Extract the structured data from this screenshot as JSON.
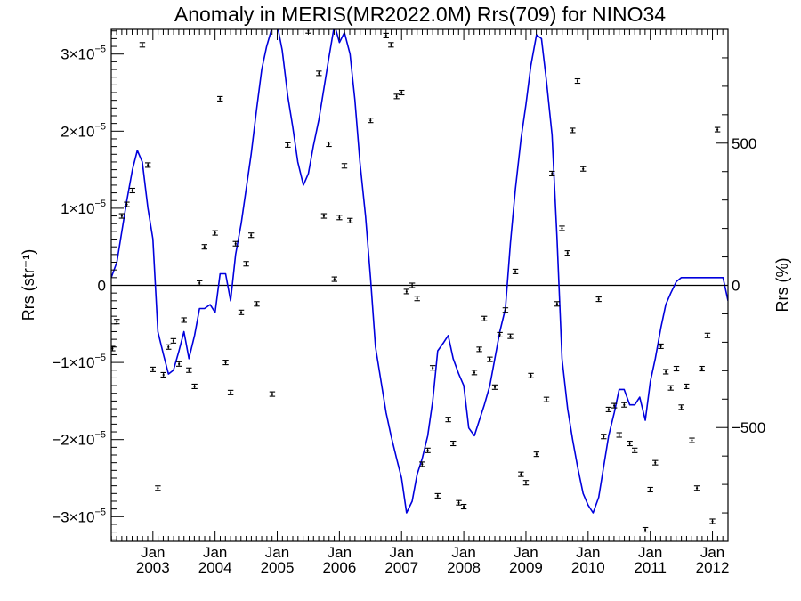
{
  "chart_data": {
    "type": "line",
    "title": "Anomaly in MERIS(MR2022.0M) Rrs(709) for NINO34",
    "ylabel": "Rrs (str⁻¹)",
    "y2label": "Rrs (%)",
    "xlim": [
      2002.33,
      2012.25
    ],
    "ylim": [
      -3.32e-05,
      3.32e-05
    ],
    "y2lim": [
      -900,
      900
    ],
    "x_ticks": [
      {
        "x": 2003.0,
        "month": "Jan",
        "year": "2003"
      },
      {
        "x": 2004.0,
        "month": "Jan",
        "year": "2004"
      },
      {
        "x": 2005.0,
        "month": "Jan",
        "year": "2005"
      },
      {
        "x": 2006.0,
        "month": "Jan",
        "year": "2006"
      },
      {
        "x": 2007.0,
        "month": "Jan",
        "year": "2007"
      },
      {
        "x": 2008.0,
        "month": "Jan",
        "year": "2008"
      },
      {
        "x": 2009.0,
        "month": "Jan",
        "year": "2009"
      },
      {
        "x": 2010.0,
        "month": "Jan",
        "year": "2010"
      },
      {
        "x": 2011.0,
        "month": "Jan",
        "year": "2011"
      },
      {
        "x": 2012.0,
        "month": "Jan",
        "year": "2012"
      }
    ],
    "y_ticks": [
      {
        "value": 3e-05,
        "mantissa": "3",
        "exponent": "−5"
      },
      {
        "value": 2e-05,
        "mantissa": "2",
        "exponent": "−5"
      },
      {
        "value": 1e-05,
        "mantissa": "1",
        "exponent": "−5"
      },
      {
        "value": 0,
        "mantissa": "0",
        "exponent": ""
      },
      {
        "value": -1e-05,
        "mantissa": "−1",
        "exponent": "−5"
      },
      {
        "value": -2e-05,
        "mantissa": "−2",
        "exponent": "−5"
      },
      {
        "value": -3e-05,
        "mantissa": "−3",
        "exponent": "−5"
      }
    ],
    "y2_ticks": [
      {
        "value": 500,
        "label": "500"
      },
      {
        "value": 0,
        "label": "0"
      },
      {
        "value": -500,
        "label": "−500"
      }
    ],
    "colors": {
      "line": "#0000dd",
      "points": "#000000",
      "zero_line": "#000000"
    },
    "line_series": {
      "name": "",
      "x": [
        2002.33,
        2002.42,
        2002.5,
        2002.58,
        2002.67,
        2002.75,
        2002.83,
        2002.92,
        2003.0,
        2003.08,
        2003.17,
        2003.25,
        2003.33,
        2003.42,
        2003.5,
        2003.58,
        2003.67,
        2003.75,
        2003.83,
        2003.92,
        2004.0,
        2004.08,
        2004.17,
        2004.25,
        2004.33,
        2004.42,
        2004.5,
        2004.58,
        2004.67,
        2004.75,
        2004.83,
        2004.92,
        2005.0,
        2005.08,
        2005.17,
        2005.25,
        2005.33,
        2005.42,
        2005.5,
        2005.58,
        2005.67,
        2005.75,
        2005.83,
        2005.92,
        2006.0,
        2006.08,
        2006.17,
        2006.25,
        2006.33,
        2006.42,
        2006.5,
        2006.58,
        2006.67,
        2006.75,
        2006.83,
        2006.92,
        2007.0,
        2007.08,
        2007.17,
        2007.25,
        2007.33,
        2007.42,
        2007.5,
        2007.58,
        2007.67,
        2007.75,
        2007.83,
        2007.92,
        2008.0,
        2008.08,
        2008.17,
        2008.25,
        2008.33,
        2008.42,
        2008.5,
        2008.58,
        2008.67,
        2008.75,
        2008.83,
        2008.92,
        2009.0,
        2009.08,
        2009.17,
        2009.25,
        2009.33,
        2009.42,
        2009.5,
        2009.58,
        2009.67,
        2009.75,
        2009.83,
        2009.92,
        2010.0,
        2010.08,
        2010.17,
        2010.25,
        2010.33,
        2010.42,
        2010.5,
        2010.58,
        2010.67,
        2010.75,
        2010.83,
        2010.92,
        2011.0,
        2011.08,
        2011.17,
        2011.25,
        2011.33,
        2011.42,
        2011.5,
        2011.58,
        2011.67,
        2011.75,
        2011.83,
        2011.92,
        2012.0,
        2012.08,
        2012.17,
        2012.25
      ],
      "y": [
        1e-06,
        3e-06,
        7e-06,
        1.1e-05,
        1.5e-05,
        1.75e-05,
        1.6e-05,
        1e-05,
        6e-06,
        -6e-06,
        -9e-06,
        -1.15e-05,
        -1.1e-05,
        -8.5e-06,
        -6e-06,
        -9.5e-06,
        -6.5e-06,
        -3e-06,
        -3e-06,
        -2.5e-06,
        -3.5e-06,
        1.5e-06,
        1.5e-06,
        -2e-06,
        4e-06,
        8e-06,
        1.25e-05,
        1.7e-05,
        2.3e-05,
        2.8e-05,
        3.1e-05,
        3.35e-05,
        3.38e-05,
        3.05e-05,
        2.45e-05,
        2.05e-05,
        1.6e-05,
        1.3e-05,
        1.45e-05,
        1.8e-05,
        2.15e-05,
        2.55e-05,
        2.95e-05,
        3.38e-05,
        3.15e-05,
        3.28e-05,
        3e-05,
        2.4e-05,
        1.6e-05,
        9e-06,
        1e-06,
        -8e-06,
        -1.25e-05,
        -1.65e-05,
        -1.95e-05,
        -2.25e-05,
        -2.5e-05,
        -2.95e-05,
        -2.8e-05,
        -2.45e-05,
        -2.25e-05,
        -1.95e-05,
        -1.5e-05,
        -8.5e-06,
        -7.5e-06,
        -6.5e-06,
        -9.5e-06,
        -1.15e-05,
        -1.3e-05,
        -1.85e-05,
        -1.95e-05,
        -1.75e-05,
        -1.55e-05,
        -1.3e-05,
        -9.5e-06,
        -6e-06,
        -3e-06,
        5.5e-06,
        1.25e-05,
        1.9e-05,
        2.35e-05,
        2.85e-05,
        3.25e-05,
        3.2e-05,
        2.65e-05,
        1.95e-05,
        6e-06,
        -9.5e-06,
        -1.6e-05,
        -2e-05,
        -2.35e-05,
        -2.7e-05,
        -2.85e-05,
        -2.95e-05,
        -2.75e-05,
        -2.35e-05,
        -1.95e-05,
        -1.65e-05,
        -1.35e-05,
        -1.35e-05,
        -1.55e-05,
        -1.55e-05,
        -1.45e-05,
        -1.75e-05,
        -1.25e-05,
        -9.5e-06,
        -5.5e-06,
        -2.5e-06,
        -1e-06,
        5e-07,
        1e-06,
        1e-06,
        1e-06,
        1e-06,
        1e-06,
        1e-06,
        1e-06,
        1e-06,
        1e-06,
        -2e-06
      ]
    },
    "point_series": {
      "name": "",
      "points": [
        [
          2002.35,
          -8.2e-06
        ],
        [
          2002.42,
          -4.7e-06
        ],
        [
          2002.5,
          9e-06
        ],
        [
          2002.58,
          1.05e-05
        ],
        [
          2002.67,
          1.23e-05
        ],
        [
          2002.83,
          3.12e-05
        ],
        [
          2002.92,
          1.56e-05
        ],
        [
          2003.0,
          -1.09e-05
        ],
        [
          2003.08,
          -2.63e-05
        ],
        [
          2003.17,
          -1.16e-05
        ],
        [
          2003.25,
          -8e-06
        ],
        [
          2003.33,
          -7.2e-06
        ],
        [
          2003.42,
          -1.02e-05
        ],
        [
          2003.5,
          -4.5e-06
        ],
        [
          2003.58,
          -1.1e-05
        ],
        [
          2003.67,
          -1.31e-05
        ],
        [
          2003.75,
          3e-07
        ],
        [
          2003.83,
          5e-06
        ],
        [
          2004.0,
          6.8e-06
        ],
        [
          2004.08,
          2.42e-05
        ],
        [
          2004.17,
          -1e-05
        ],
        [
          2004.25,
          -1.39e-05
        ],
        [
          2004.33,
          5.4e-06
        ],
        [
          2004.42,
          -3.5e-06
        ],
        [
          2004.5,
          2.8e-06
        ],
        [
          2004.58,
          6.5e-06
        ],
        [
          2004.67,
          -2.4e-06
        ],
        [
          2004.92,
          -1.41e-05
        ],
        [
          2005.17,
          1.82e-05
        ],
        [
          2005.5,
          3.3e-05
        ],
        [
          2005.67,
          2.75e-05
        ],
        [
          2005.75,
          9e-06
        ],
        [
          2005.83,
          1.83e-05
        ],
        [
          2005.92,
          8e-07
        ],
        [
          2006.0,
          8.8e-06
        ],
        [
          2006.08,
          1.55e-05
        ],
        [
          2006.17,
          8.4e-06
        ],
        [
          2006.5,
          2.14e-05
        ],
        [
          2006.75,
          3.24e-05
        ],
        [
          2006.83,
          3.12e-05
        ],
        [
          2006.92,
          2.45e-05
        ],
        [
          2007.0,
          2.5e-05
        ],
        [
          2007.08,
          -8e-07
        ],
        [
          2007.17,
          0.0
        ],
        [
          2007.25,
          -1.7e-06
        ],
        [
          2007.33,
          -2.32e-05
        ],
        [
          2007.42,
          -2.14e-05
        ],
        [
          2007.5,
          -1.07e-05
        ],
        [
          2007.58,
          -2.73e-05
        ],
        [
          2007.75,
          -1.74e-05
        ],
        [
          2007.83,
          -2.05e-05
        ],
        [
          2007.92,
          -2.82e-05
        ],
        [
          2008.0,
          -2.87e-05
        ],
        [
          2008.17,
          -1.13e-05
        ],
        [
          2008.25,
          -8.3e-06
        ],
        [
          2008.33,
          -4.3e-06
        ],
        [
          2008.42,
          -9.6e-06
        ],
        [
          2008.5,
          -1.32e-05
        ],
        [
          2008.58,
          -6.4e-06
        ],
        [
          2008.67,
          -3.2e-06
        ],
        [
          2008.75,
          -6.6e-06
        ],
        [
          2008.83,
          1.8e-06
        ],
        [
          2008.92,
          -2.45e-05
        ],
        [
          2009.0,
          -2.56e-05
        ],
        [
          2009.08,
          -1.17e-05
        ],
        [
          2009.17,
          -2.19e-05
        ],
        [
          2009.33,
          -1.48e-05
        ],
        [
          2009.42,
          1.45e-05
        ],
        [
          2009.5,
          -2.4e-06
        ],
        [
          2009.58,
          7.4e-06
        ],
        [
          2009.67,
          4.2e-06
        ],
        [
          2009.75,
          2.01e-05
        ],
        [
          2009.83,
          2.65e-05
        ],
        [
          2009.92,
          1.51e-05
        ],
        [
          2010.17,
          -1.8e-06
        ],
        [
          2010.25,
          -1.96e-05
        ],
        [
          2010.33,
          -1.61e-05
        ],
        [
          2010.42,
          -1.56e-05
        ],
        [
          2010.5,
          -1.94e-05
        ],
        [
          2010.58,
          -1.55e-05
        ],
        [
          2010.67,
          -2.05e-05
        ],
        [
          2010.75,
          -2.14e-05
        ],
        [
          2010.92,
          -3.17e-05
        ],
        [
          2011.0,
          -2.65e-05
        ],
        [
          2011.08,
          -2.3e-05
        ],
        [
          2011.17,
          -7.9e-06
        ],
        [
          2011.25,
          -1.12e-05
        ],
        [
          2011.33,
          -1.33e-05
        ],
        [
          2011.42,
          -1.08e-05
        ],
        [
          2011.5,
          -1.58e-05
        ],
        [
          2011.58,
          -1.31e-05
        ],
        [
          2011.67,
          -2.01e-05
        ],
        [
          2011.75,
          -2.63e-05
        ],
        [
          2011.83,
          -1.08e-05
        ],
        [
          2011.92,
          -6.5e-06
        ],
        [
          2012.0,
          -3.06e-05
        ],
        [
          2012.08,
          2.02e-05
        ]
      ]
    }
  }
}
